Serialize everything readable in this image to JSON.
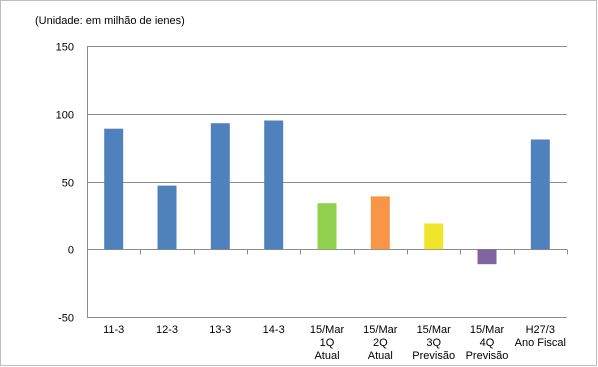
{
  "chart_data": {
    "type": "bar",
    "unit_label": "(Unidade: em milhão de ienes)",
    "categories": [
      [
        "11-3"
      ],
      [
        "12-3"
      ],
      [
        "13-3"
      ],
      [
        "14-3"
      ],
      [
        "15/Mar",
        "1Q",
        "Atual"
      ],
      [
        "15/Mar",
        "2Q",
        "Atual"
      ],
      [
        "15/Mar",
        "3Q",
        "Previsão"
      ],
      [
        "15/Mar",
        "4Q",
        "Previsão"
      ],
      [
        "H27/3",
        "Ano Fiscal"
      ]
    ],
    "values": [
      89,
      47,
      93,
      95,
      34,
      39,
      19,
      -11,
      81
    ],
    "colors": [
      "#4f81bd",
      "#4f81bd",
      "#4f81bd",
      "#4f81bd",
      "#92d050",
      "#f79646",
      "#f0e52a",
      "#8064a2",
      "#4f81bd"
    ],
    "ylim": [
      -50,
      150
    ],
    "yticks": [
      -50,
      0,
      50,
      100,
      150
    ],
    "grid": true,
    "legend": "none"
  }
}
